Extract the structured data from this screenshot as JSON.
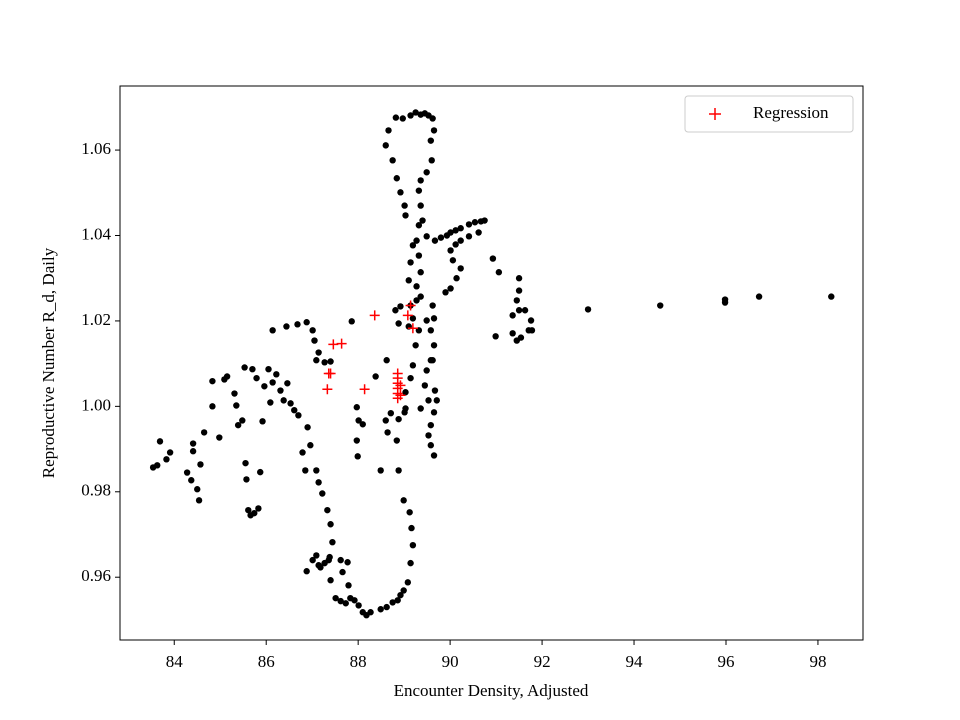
{
  "chart_data": {
    "type": "scatter",
    "xlabel": "Encounter Density, Adjusted",
    "ylabel": "Reproductive Number R_d, Daily",
    "xlim": [
      82.82,
      98.98
    ],
    "ylim": [
      0.9453,
      1.075
    ],
    "xticks": [
      84,
      86,
      88,
      90,
      92,
      94,
      96,
      98
    ],
    "yticks": [
      0.96,
      0.98,
      {
        "value": 1.0,
        "label": "1.00"
      },
      1.02,
      1.04,
      1.06
    ],
    "legend": "upper right",
    "series": [
      {
        "color": "#000000",
        "marker": "o",
        "x": [
          83.54,
          83.63,
          83.69,
          83.83,
          83.91,
          84.28,
          84.37,
          84.41,
          84.41,
          84.5,
          84.54,
          84.57,
          84.65,
          84.83,
          84.83,
          84.98,
          85.09,
          85.15,
          85.31,
          85.35,
          85.39,
          85.48,
          85.55,
          85.57,
          85.61,
          85.66,
          85.74,
          85.83,
          85.87,
          85.92,
          85.96,
          86.05,
          86.09,
          86.14,
          86.22,
          86.31,
          86.38,
          86.46,
          86.53,
          86.61,
          86.7,
          86.79,
          86.85,
          86.9,
          86.96,
          87.09,
          87.14,
          87.22,
          87.33,
          87.4,
          87.44,
          87.38,
          87.27,
          87.14,
          87.01,
          86.88,
          87.09,
          87.18,
          87.36,
          87.4,
          87.51,
          87.62,
          87.73,
          87.79,
          87.66,
          87.62,
          87.77,
          87.83,
          87.92,
          88.01,
          88.1,
          88.18,
          88.27,
          88.49,
          88.62,
          88.75,
          88.86,
          88.92,
          88.99,
          89.08,
          89.14,
          89.19,
          89.16,
          89.12,
          88.99,
          88.88,
          88.84,
          88.88,
          89.01,
          89.03,
          89.14,
          89.19,
          89.25,
          89.32,
          89.49,
          89.58,
          89.65,
          89.58,
          89.49,
          89.45,
          89.53,
          89.65,
          89.58,
          89.53,
          89.58,
          89.65,
          89.67,
          89.62,
          89.65,
          89.62,
          89.36,
          89.27,
          89.36,
          89.32,
          89.27,
          89.32,
          89.19,
          89.14,
          89.1,
          89.27,
          89.14,
          88.92,
          88.81,
          88.88,
          89.1,
          89.19,
          89.03,
          89.01,
          88.92,
          88.84,
          88.75,
          88.6,
          88.66,
          88.82,
          88.97,
          89.14,
          89.25,
          89.36,
          89.45,
          89.53,
          89.62,
          89.65,
          89.58,
          89.6,
          89.49,
          89.36,
          89.32,
          89.36,
          89.4,
          89.49,
          89.67,
          89.8,
          89.93,
          90.01,
          90.12,
          90.23,
          90.41,
          90.54,
          90.67,
          90.75,
          90.62,
          90.41,
          90.23,
          90.12,
          90.01,
          90.06,
          90.23,
          90.14,
          90.01,
          89.9,
          90.93,
          91.06,
          91.5,
          91.5,
          91.45,
          91.5,
          91.36,
          91.36,
          91.45,
          91.54,
          91.71,
          91.76,
          91.63,
          91.78,
          90.99,
          93.0,
          94.57,
          95.98,
          95.98,
          96.72,
          98.29,
          86.14,
          86.44,
          86.68,
          86.88,
          87.01,
          87.05,
          87.14,
          87.09,
          87.27,
          87.4,
          87.86,
          87.97,
          88.01,
          87.97,
          87.99,
          88.1,
          88.62,
          88.38,
          88.49,
          88.6,
          88.64,
          88.71,
          89.03,
          89.36,
          89.71,
          85.53,
          85.7,
          85.79
        ],
        "y": [
          0.9857,
          0.9862,
          0.9918,
          0.9876,
          0.9892,
          0.9845,
          0.9827,
          0.9913,
          0.9895,
          0.9806,
          0.978,
          0.9864,
          0.9939,
          1.0059,
          1.0,
          0.9927,
          1.0063,
          1.007,
          1.003,
          1.0002,
          0.9956,
          0.9967,
          0.9867,
          0.9829,
          0.9757,
          0.9745,
          0.975,
          0.9761,
          0.9846,
          0.9965,
          1.0047,
          1.0087,
          1.0009,
          1.0056,
          1.0075,
          1.0037,
          1.0014,
          1.0054,
          1.0007,
          0.9991,
          0.9979,
          0.9892,
          0.985,
          0.9951,
          0.9909,
          0.985,
          0.9822,
          0.9796,
          0.9757,
          0.9724,
          0.9682,
          0.9647,
          0.9633,
          0.9628,
          0.964,
          0.9614,
          0.9651,
          0.9623,
          0.964,
          0.9593,
          0.9551,
          0.9544,
          0.9539,
          0.9581,
          0.9612,
          0.964,
          0.9635,
          0.9551,
          0.9546,
          0.9534,
          0.9518,
          0.9511,
          0.9518,
          0.9525,
          0.953,
          0.9541,
          0.9546,
          0.9558,
          0.9569,
          0.9588,
          0.9633,
          0.9675,
          0.9715,
          0.9752,
          0.978,
          0.985,
          0.992,
          0.997,
          0.9986,
          1.0033,
          1.0066,
          1.0096,
          1.0143,
          1.0178,
          1.0201,
          1.0178,
          1.0143,
          1.0108,
          1.0084,
          1.0049,
          1.0014,
          0.9986,
          0.9956,
          0.9932,
          0.9909,
          0.9885,
          1.0037,
          1.0108,
          1.0206,
          1.0236,
          1.0257,
          1.0281,
          1.0314,
          1.0353,
          1.0388,
          1.0424,
          1.0377,
          1.0337,
          1.0295,
          1.0248,
          1.0236,
          1.0234,
          1.0225,
          1.0194,
          1.0187,
          1.0206,
          1.0447,
          1.047,
          1.0501,
          1.0534,
          1.0576,
          1.0611,
          1.0646,
          1.0676,
          1.0674,
          1.0681,
          1.0688,
          1.0683,
          1.0686,
          1.0681,
          1.0674,
          1.0646,
          1.0622,
          1.0576,
          1.0548,
          1.0529,
          1.0505,
          1.047,
          1.0435,
          1.0398,
          1.0388,
          1.0395,
          1.04,
          1.0407,
          1.0412,
          1.0417,
          1.0426,
          1.0431,
          1.0433,
          1.0435,
          1.0407,
          1.0398,
          1.0388,
          1.0379,
          1.0365,
          1.0342,
          1.0323,
          1.03,
          1.0276,
          1.0267,
          1.0346,
          1.0314,
          1.03,
          1.0271,
          1.0248,
          1.0225,
          1.0213,
          1.0171,
          1.0154,
          1.0161,
          1.0178,
          1.0201,
          1.0225,
          1.0178,
          1.0164,
          1.0227,
          1.0236,
          1.025,
          1.0243,
          1.0257,
          1.0257,
          1.0178,
          1.0187,
          1.0192,
          1.0197,
          1.0178,
          1.0154,
          1.0126,
          1.0108,
          1.0103,
          1.0105,
          1.0199,
          0.9998,
          0.9967,
          0.992,
          0.9883,
          0.9958,
          1.0108,
          1.007,
          0.985,
          0.9967,
          0.9939,
          0.9984,
          0.9995,
          0.9995,
          1.0014,
          1.0091,
          1.0087,
          1.0066
        ]
      },
      {
        "name": "Regression",
        "color": "#ff0000",
        "marker": "+",
        "x": [
          87.33,
          87.4,
          87.36,
          87.46,
          87.64,
          88.14,
          88.36,
          88.86,
          88.86,
          88.86,
          88.86,
          88.86,
          88.86,
          88.92,
          88.92,
          89.14,
          89.19,
          89.08
        ],
        "y": [
          1.004,
          1.0077,
          1.0077,
          1.0145,
          1.0147,
          1.004,
          1.0213,
          1.0077,
          1.0066,
          1.0054,
          1.0042,
          1.003,
          1.0019,
          1.0049,
          1.0026,
          1.0236,
          1.0183,
          1.0213
        ]
      }
    ]
  }
}
